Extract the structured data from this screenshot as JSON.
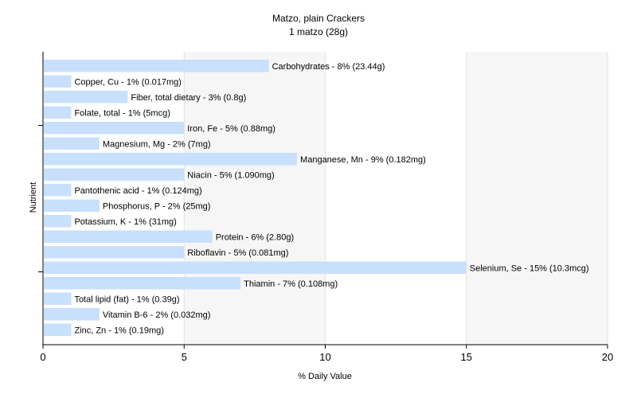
{
  "chart_data": {
    "type": "bar",
    "orientation": "horizontal",
    "title": "Matzo, plain Crackers",
    "subtitle": "1 matzo (28g)",
    "xlabel": "% Daily Value",
    "ylabel": "Nutrient",
    "xlim": [
      0,
      20
    ],
    "xticks": [
      0,
      5,
      10,
      15,
      20
    ],
    "grid": true,
    "legend": "none",
    "bar_color": "#c8e0fc",
    "categories": [
      "Carbohydrates",
      "Copper, Cu",
      "Fiber, total dietary",
      "Folate, total",
      "Iron, Fe",
      "Magnesium, Mg",
      "Manganese, Mn",
      "Niacin",
      "Pantothenic acid",
      "Phosphorus, P",
      "Potassium, K",
      "Protein",
      "Riboflavin",
      "Selenium, Se",
      "Thiamin",
      "Total lipid (fat)",
      "Vitamin B-6",
      "Zinc, Zn"
    ],
    "values": [
      8,
      1,
      3,
      1,
      5,
      2,
      9,
      5,
      1,
      2,
      1,
      6,
      5,
      15,
      7,
      1,
      2,
      1
    ],
    "labels": [
      "Carbohydrates - 8% (23.44g)",
      "Copper, Cu - 1% (0.017mg)",
      "Fiber, total dietary - 3% (0.8g)",
      "Folate, total - 1% (5mcg)",
      "Iron, Fe - 5% (0.88mg)",
      "Magnesium, Mg - 2% (7mg)",
      "Manganese, Mn - 9% (0.182mg)",
      "Niacin - 5% (1.090mg)",
      "Pantothenic acid - 1% (0.124mg)",
      "Phosphorus, P - 2% (25mg)",
      "Potassium, K - 1% (31mg)",
      "Protein - 6% (2.80g)",
      "Riboflavin - 5% (0.081mg)",
      "Selenium, Se - 15% (10.3mcg)",
      "Thiamin - 7% (0.108mg)",
      "Total lipid (fat) - 1% (0.39g)",
      "Vitamin B-6 - 2% (0.032mg)",
      "Zinc, Zn - 1% (0.19mg)"
    ]
  }
}
